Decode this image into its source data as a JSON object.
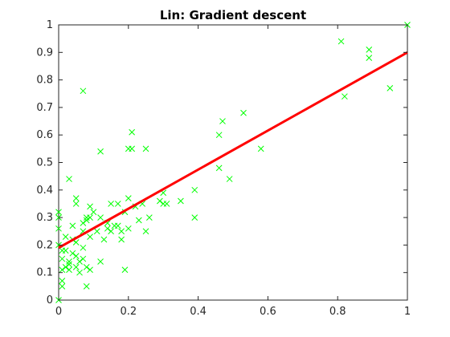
{
  "colors": {
    "background": "#ffffff",
    "axes": "#262626",
    "scatter": "#00ff00",
    "fit_line": "#ff0000"
  },
  "chart_data": {
    "type": "scatter",
    "title": "Lin: Gradient descent",
    "xlabel": "",
    "ylabel": "",
    "xlim": [
      0,
      1
    ],
    "ylim": [
      0,
      1
    ],
    "x_ticks": [
      0,
      0.2,
      0.4,
      0.6,
      0.8,
      1
    ],
    "x_tick_labels": [
      "0",
      "0.2",
      "0.4",
      "0.6",
      "0.8",
      "1"
    ],
    "y_ticks": [
      0,
      0.1,
      0.2,
      0.3,
      0.4,
      0.5,
      0.6,
      0.7,
      0.8,
      0.9,
      1
    ],
    "y_tick_labels": [
      "0",
      "0.1",
      "0.2",
      "0.3",
      "0.4",
      "0.5",
      "0.6",
      "0.7",
      "0.8",
      "0.9",
      "1"
    ],
    "grid": false,
    "legend": "none",
    "series": [
      {
        "type": "scatter",
        "marker": "x",
        "points": [
          [
            0.0,
            0.0
          ],
          [
            0.0,
            0.32
          ],
          [
            0.0,
            0.3
          ],
          [
            0.0,
            0.26
          ],
          [
            0.0,
            0.2
          ],
          [
            0.01,
            0.07
          ],
          [
            0.01,
            0.05
          ],
          [
            0.01,
            0.11
          ],
          [
            0.01,
            0.15
          ],
          [
            0.01,
            0.18
          ],
          [
            0.02,
            0.18
          ],
          [
            0.02,
            0.12
          ],
          [
            0.02,
            0.23
          ],
          [
            0.03,
            0.44
          ],
          [
            0.03,
            0.14
          ],
          [
            0.03,
            0.13
          ],
          [
            0.03,
            0.11
          ],
          [
            0.04,
            0.27
          ],
          [
            0.04,
            0.22
          ],
          [
            0.04,
            0.17
          ],
          [
            0.05,
            0.37
          ],
          [
            0.05,
            0.35
          ],
          [
            0.05,
            0.21
          ],
          [
            0.05,
            0.16
          ],
          [
            0.05,
            0.12
          ],
          [
            0.06,
            0.14
          ],
          [
            0.06,
            0.1
          ],
          [
            0.07,
            0.76
          ],
          [
            0.07,
            0.28
          ],
          [
            0.07,
            0.25
          ],
          [
            0.07,
            0.19
          ],
          [
            0.07,
            0.15
          ],
          [
            0.08,
            0.3
          ],
          [
            0.08,
            0.29
          ],
          [
            0.08,
            0.05
          ],
          [
            0.08,
            0.12
          ],
          [
            0.09,
            0.34
          ],
          [
            0.09,
            0.3
          ],
          [
            0.09,
            0.23
          ],
          [
            0.09,
            0.11
          ],
          [
            0.1,
            0.32
          ],
          [
            0.11,
            0.25
          ],
          [
            0.12,
            0.54
          ],
          [
            0.12,
            0.3
          ],
          [
            0.12,
            0.14
          ],
          [
            0.13,
            0.22
          ],
          [
            0.14,
            0.28
          ],
          [
            0.14,
            0.26
          ],
          [
            0.15,
            0.35
          ],
          [
            0.15,
            0.25
          ],
          [
            0.16,
            0.27
          ],
          [
            0.17,
            0.35
          ],
          [
            0.17,
            0.27
          ],
          [
            0.18,
            0.25
          ],
          [
            0.18,
            0.22
          ],
          [
            0.19,
            0.32
          ],
          [
            0.19,
            0.11
          ],
          [
            0.2,
            0.55
          ],
          [
            0.2,
            0.37
          ],
          [
            0.2,
            0.26
          ],
          [
            0.21,
            0.61
          ],
          [
            0.21,
            0.55
          ],
          [
            0.22,
            0.34
          ],
          [
            0.23,
            0.29
          ],
          [
            0.24,
            0.35
          ],
          [
            0.25,
            0.55
          ],
          [
            0.25,
            0.25
          ],
          [
            0.26,
            0.3
          ],
          [
            0.29,
            0.36
          ],
          [
            0.3,
            0.39
          ],
          [
            0.3,
            0.35
          ],
          [
            0.31,
            0.35
          ],
          [
            0.35,
            0.36
          ],
          [
            0.39,
            0.4
          ],
          [
            0.39,
            0.3
          ],
          [
            0.46,
            0.6
          ],
          [
            0.46,
            0.48
          ],
          [
            0.47,
            0.65
          ],
          [
            0.49,
            0.44
          ],
          [
            0.53,
            0.68
          ],
          [
            0.58,
            0.55
          ],
          [
            0.81,
            0.94
          ],
          [
            0.82,
            0.74
          ],
          [
            0.89,
            0.91
          ],
          [
            0.89,
            0.88
          ],
          [
            0.95,
            0.77
          ],
          [
            1.0,
            1.0
          ]
        ]
      },
      {
        "type": "line",
        "points": [
          [
            0,
            0.19
          ],
          [
            1,
            0.9
          ]
        ]
      }
    ]
  }
}
